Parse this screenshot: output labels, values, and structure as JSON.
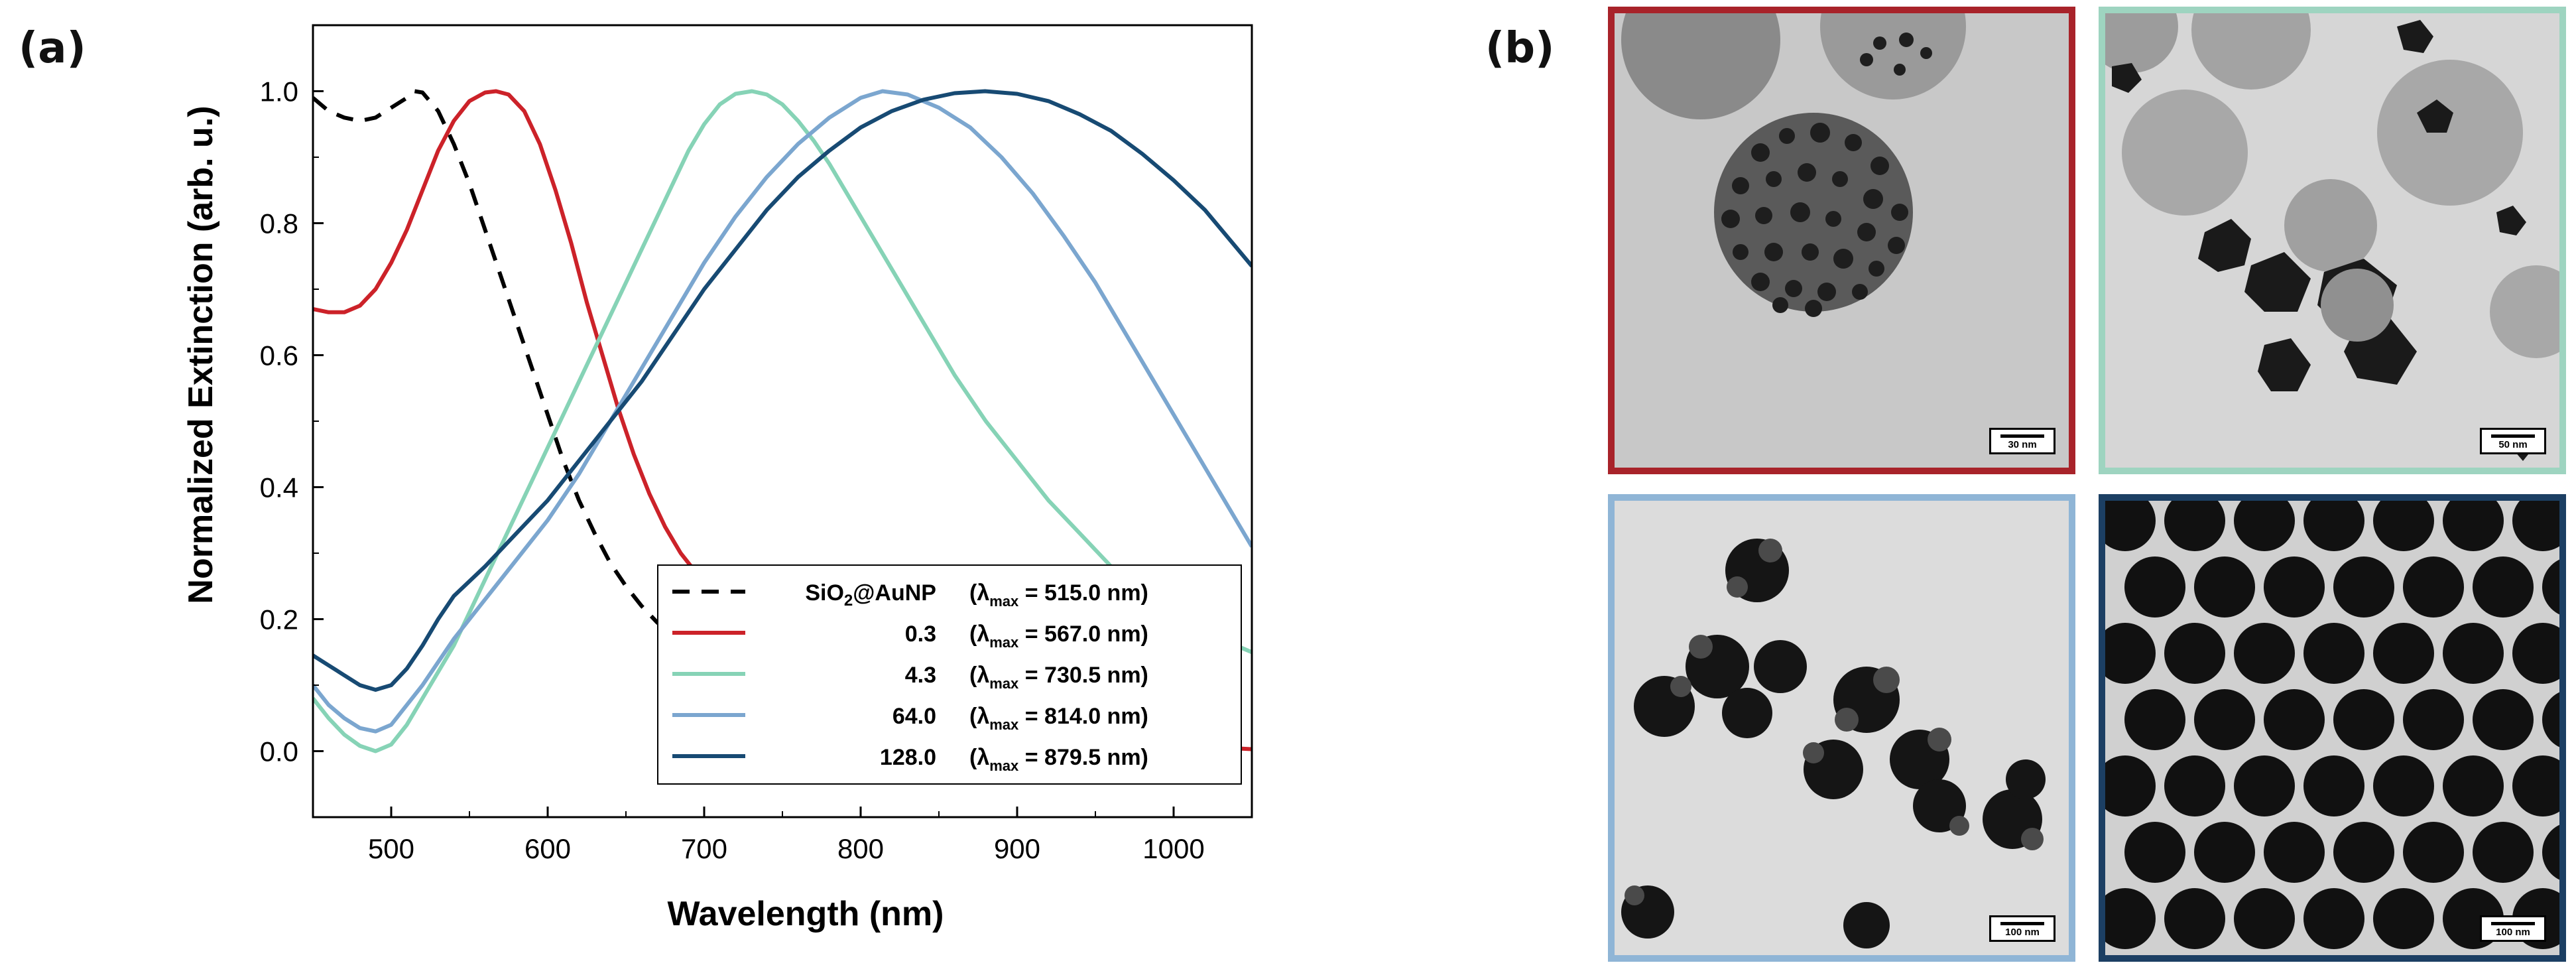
{
  "panel_labels": {
    "a": "(a)",
    "b": "(b)"
  },
  "chart_data": {
    "type": "line",
    "xlabel": "Wavelength (nm)",
    "ylabel": "Normalized Extinction (arb. u.)",
    "xlim": [
      450,
      1050
    ],
    "ylim": [
      -0.1,
      1.1
    ],
    "x_ticks": [
      500,
      600,
      700,
      800,
      900,
      1000
    ],
    "y_ticks": [
      0.0,
      0.2,
      0.4,
      0.6,
      0.8,
      1.0
    ],
    "x_tick_labels": [
      "500",
      "600",
      "700",
      "800",
      "900",
      "1000"
    ],
    "y_tick_labels": [
      "0.0",
      "0.2",
      "0.4",
      "0.6",
      "0.8",
      "1.0"
    ],
    "grid": false,
    "legend_position": "bottom-right",
    "series": [
      {
        "name": "SiO₂@AuNP",
        "legend_value": "(λmax = 515.0 nm)",
        "color": "#000000",
        "dash": true,
        "points": [
          [
            450,
            0.99
          ],
          [
            460,
            0.97
          ],
          [
            470,
            0.96
          ],
          [
            480,
            0.955
          ],
          [
            490,
            0.96
          ],
          [
            500,
            0.975
          ],
          [
            510,
            0.99
          ],
          [
            515,
            1.0
          ],
          [
            520,
            0.998
          ],
          [
            530,
            0.97
          ],
          [
            540,
            0.92
          ],
          [
            550,
            0.86
          ],
          [
            560,
            0.79
          ],
          [
            570,
            0.72
          ],
          [
            580,
            0.65
          ],
          [
            590,
            0.58
          ],
          [
            600,
            0.51
          ],
          [
            610,
            0.44
          ],
          [
            620,
            0.38
          ],
          [
            630,
            0.33
          ],
          [
            640,
            0.285
          ],
          [
            650,
            0.25
          ],
          [
            660,
            0.22
          ],
          [
            670,
            0.195
          ],
          [
            680,
            0.175
          ],
          [
            690,
            0.16
          ],
          [
            700,
            0.15
          ]
        ]
      },
      {
        "name": "0.3",
        "legend_value": "(λmax = 567.0 nm)",
        "color": "#cc2229",
        "dash": false,
        "points": [
          [
            450,
            0.67
          ],
          [
            460,
            0.665
          ],
          [
            470,
            0.665
          ],
          [
            480,
            0.675
          ],
          [
            490,
            0.7
          ],
          [
            500,
            0.74
          ],
          [
            510,
            0.79
          ],
          [
            520,
            0.85
          ],
          [
            530,
            0.91
          ],
          [
            540,
            0.955
          ],
          [
            550,
            0.985
          ],
          [
            560,
            0.998
          ],
          [
            567,
            1.0
          ],
          [
            575,
            0.995
          ],
          [
            585,
            0.97
          ],
          [
            595,
            0.92
          ],
          [
            605,
            0.85
          ],
          [
            615,
            0.77
          ],
          [
            625,
            0.68
          ],
          [
            635,
            0.6
          ],
          [
            645,
            0.52
          ],
          [
            655,
            0.45
          ],
          [
            665,
            0.39
          ],
          [
            675,
            0.34
          ],
          [
            685,
            0.3
          ],
          [
            695,
            0.27
          ],
          [
            705,
            0.245
          ],
          [
            720,
            0.21
          ],
          [
            740,
            0.18
          ],
          [
            760,
            0.15
          ],
          [
            780,
            0.13
          ],
          [
            800,
            0.11
          ],
          [
            825,
            0.095
          ],
          [
            850,
            0.08
          ],
          [
            875,
            0.065
          ],
          [
            900,
            0.05
          ],
          [
            925,
            0.04
          ],
          [
            950,
            0.03
          ],
          [
            975,
            0.02
          ],
          [
            1000,
            0.012
          ],
          [
            1025,
            0.006
          ],
          [
            1050,
            0.003
          ]
        ]
      },
      {
        "name": "4.3",
        "legend_value": "(λmax = 730.5 nm)",
        "color": "#86d3b6",
        "dash": false,
        "points": [
          [
            450,
            0.08
          ],
          [
            460,
            0.05
          ],
          [
            470,
            0.025
          ],
          [
            480,
            0.008
          ],
          [
            490,
            0.0
          ],
          [
            500,
            0.01
          ],
          [
            510,
            0.04
          ],
          [
            520,
            0.08
          ],
          [
            530,
            0.12
          ],
          [
            540,
            0.16
          ],
          [
            550,
            0.21
          ],
          [
            560,
            0.26
          ],
          [
            570,
            0.31
          ],
          [
            580,
            0.36
          ],
          [
            590,
            0.41
          ],
          [
            600,
            0.46
          ],
          [
            610,
            0.51
          ],
          [
            620,
            0.56
          ],
          [
            630,
            0.61
          ],
          [
            640,
            0.66
          ],
          [
            650,
            0.71
          ],
          [
            660,
            0.76
          ],
          [
            670,
            0.81
          ],
          [
            680,
            0.86
          ],
          [
            690,
            0.91
          ],
          [
            700,
            0.95
          ],
          [
            710,
            0.98
          ],
          [
            720,
            0.996
          ],
          [
            730.5,
            1.0
          ],
          [
            740,
            0.995
          ],
          [
            750,
            0.98
          ],
          [
            760,
            0.955
          ],
          [
            770,
            0.925
          ],
          [
            780,
            0.89
          ],
          [
            790,
            0.85
          ],
          [
            800,
            0.81
          ],
          [
            820,
            0.73
          ],
          [
            840,
            0.65
          ],
          [
            860,
            0.57
          ],
          [
            880,
            0.5
          ],
          [
            900,
            0.44
          ],
          [
            920,
            0.38
          ],
          [
            940,
            0.33
          ],
          [
            960,
            0.28
          ],
          [
            980,
            0.24
          ],
          [
            1000,
            0.21
          ],
          [
            1020,
            0.18
          ],
          [
            1050,
            0.15
          ]
        ]
      },
      {
        "name": "64.0",
        "legend_value": "(λmax = 814.0 nm)",
        "color": "#7ba6cf",
        "dash": false,
        "points": [
          [
            450,
            0.1
          ],
          [
            460,
            0.07
          ],
          [
            470,
            0.05
          ],
          [
            480,
            0.035
          ],
          [
            490,
            0.03
          ],
          [
            500,
            0.04
          ],
          [
            510,
            0.07
          ],
          [
            520,
            0.1
          ],
          [
            540,
            0.17
          ],
          [
            560,
            0.23
          ],
          [
            580,
            0.29
          ],
          [
            600,
            0.35
          ],
          [
            620,
            0.42
          ],
          [
            640,
            0.5
          ],
          [
            660,
            0.58
          ],
          [
            680,
            0.66
          ],
          [
            700,
            0.74
          ],
          [
            720,
            0.81
          ],
          [
            740,
            0.87
          ],
          [
            760,
            0.92
          ],
          [
            780,
            0.96
          ],
          [
            800,
            0.99
          ],
          [
            814,
            1.0
          ],
          [
            830,
            0.995
          ],
          [
            850,
            0.975
          ],
          [
            870,
            0.945
          ],
          [
            890,
            0.9
          ],
          [
            910,
            0.845
          ],
          [
            930,
            0.78
          ],
          [
            950,
            0.71
          ],
          [
            970,
            0.63
          ],
          [
            990,
            0.55
          ],
          [
            1010,
            0.47
          ],
          [
            1030,
            0.39
          ],
          [
            1050,
            0.31
          ]
        ]
      },
      {
        "name": "128.0",
        "legend_value": "(λmax = 879.5 nm)",
        "color": "#174a73",
        "dash": false,
        "points": [
          [
            450,
            0.145
          ],
          [
            460,
            0.13
          ],
          [
            470,
            0.115
          ],
          [
            480,
            0.1
          ],
          [
            490,
            0.093
          ],
          [
            500,
            0.1
          ],
          [
            510,
            0.125
          ],
          [
            520,
            0.16
          ],
          [
            530,
            0.2
          ],
          [
            540,
            0.235
          ],
          [
            560,
            0.28
          ],
          [
            580,
            0.33
          ],
          [
            600,
            0.38
          ],
          [
            620,
            0.44
          ],
          [
            640,
            0.5
          ],
          [
            660,
            0.56
          ],
          [
            680,
            0.63
          ],
          [
            700,
            0.7
          ],
          [
            720,
            0.76
          ],
          [
            740,
            0.82
          ],
          [
            760,
            0.87
          ],
          [
            780,
            0.91
          ],
          [
            800,
            0.945
          ],
          [
            820,
            0.97
          ],
          [
            840,
            0.987
          ],
          [
            860,
            0.997
          ],
          [
            879.5,
            1.0
          ],
          [
            900,
            0.996
          ],
          [
            920,
            0.985
          ],
          [
            940,
            0.965
          ],
          [
            960,
            0.94
          ],
          [
            980,
            0.905
          ],
          [
            1000,
            0.865
          ],
          [
            1020,
            0.82
          ],
          [
            1050,
            0.735
          ]
        ]
      }
    ]
  },
  "tem_images": [
    {
      "scale": "30 nm",
      "border_color": "#a8232a"
    },
    {
      "scale": "50 nm",
      "border_color": "#9ed4c0"
    },
    {
      "scale": "100 nm",
      "border_color": "#8fb5d6"
    },
    {
      "scale": "100 nm",
      "border_color": "#1c3f63"
    }
  ],
  "legend": {
    "lambda_symbol": "λ",
    "max_subscript": "max"
  }
}
